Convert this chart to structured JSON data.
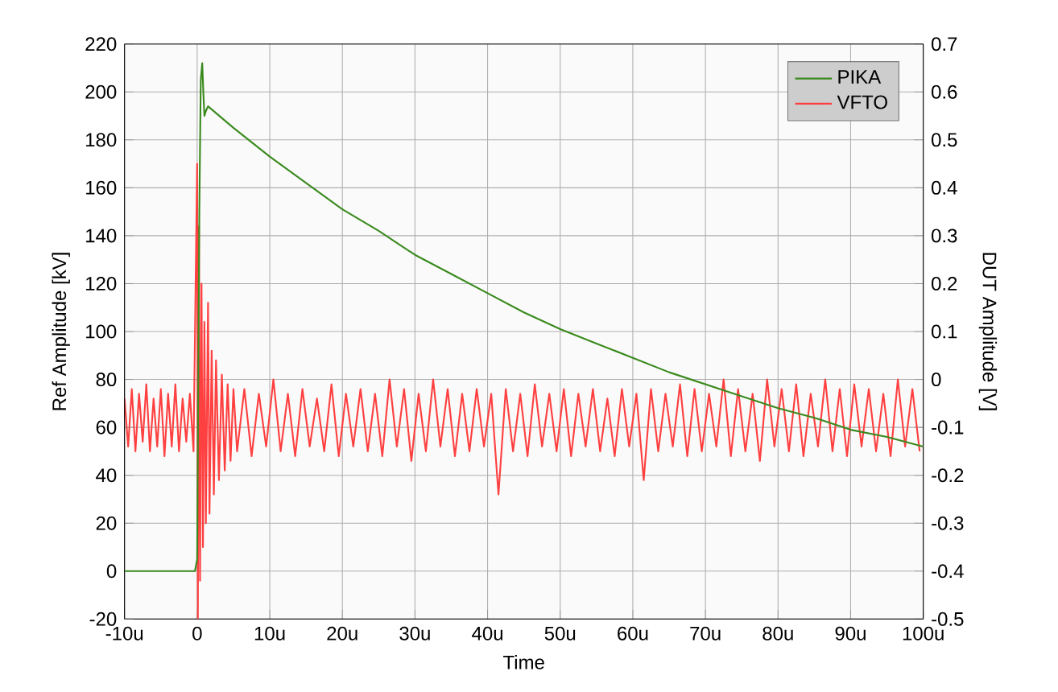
{
  "chart_data": {
    "type": "line",
    "xlabel": "Time",
    "ylabel": "Ref Amplitude [kV]",
    "y2label": "DUT Amplitude [V]",
    "xlim": [
      -10,
      100
    ],
    "xticks": [
      {
        "value": -10,
        "label": "-10u"
      },
      {
        "value": 0,
        "label": "0"
      },
      {
        "value": 10,
        "label": "10u"
      },
      {
        "value": 20,
        "label": "20u"
      },
      {
        "value": 30,
        "label": "30u"
      },
      {
        "value": 40,
        "label": "40u"
      },
      {
        "value": 50,
        "label": "50u"
      },
      {
        "value": 60,
        "label": "60u"
      },
      {
        "value": 70,
        "label": "70u"
      },
      {
        "value": 80,
        "label": "80u"
      },
      {
        "value": 90,
        "label": "90u"
      },
      {
        "value": 100,
        "label": "100u"
      }
    ],
    "ylim": [
      -20,
      220
    ],
    "yticks": [
      -20,
      0,
      20,
      40,
      60,
      80,
      100,
      120,
      140,
      160,
      180,
      200,
      220
    ],
    "y2lim": [
      -0.5,
      0.7
    ],
    "y2ticks": [
      -0.5,
      -0.4,
      -0.3,
      -0.2,
      -0.1,
      0,
      0.1,
      0.2,
      0.3,
      0.4,
      0.5,
      0.6,
      0.7
    ],
    "grid": true,
    "legend": "top right",
    "series": [
      {
        "name": "PIKA",
        "color": "#3a8a1e",
        "axis": "y",
        "x": [
          -10,
          -0.3,
          0,
          0.3,
          0.5,
          0.7,
          0.85,
          1.0,
          1.2,
          1.5,
          5,
          10,
          15,
          20,
          25,
          30,
          35,
          40,
          45,
          50,
          55,
          60,
          65,
          70,
          75,
          80,
          85,
          90,
          95,
          100
        ],
        "values": [
          0,
          0,
          5,
          150,
          205,
          212,
          200,
          190,
          192,
          194,
          185,
          173,
          162,
          151,
          142,
          132,
          124,
          116,
          108,
          101,
          95,
          89,
          83,
          78,
          73,
          68,
          64,
          59,
          56,
          52
        ]
      },
      {
        "name": "VFTO",
        "color": "#ff4040",
        "axis": "y2",
        "x": [
          -10,
          -9.5,
          -9,
          -8.5,
          -8,
          -7.5,
          -7,
          -6.5,
          -6,
          -5.5,
          -5,
          -4.5,
          -4,
          -3.5,
          -3,
          -2.5,
          -2,
          -1.5,
          -1,
          -0.5,
          0,
          0.1,
          0.25,
          0.4,
          0.6,
          0.8,
          1.0,
          1.2,
          1.5,
          1.7,
          2.0,
          2.3,
          2.6,
          3.0,
          3.4,
          3.8,
          4.2,
          4.6,
          5.0,
          5.5,
          6.5,
          7.5,
          8.5,
          9.5,
          10.5,
          11.5,
          12.5,
          13.5,
          14.5,
          15.5,
          16.5,
          17.5,
          18.5,
          19.5,
          20.5,
          21.5,
          22.5,
          23.5,
          24.5,
          25.5,
          26.5,
          27.5,
          28.5,
          29.5,
          30.5,
          31.5,
          32.5,
          33.5,
          34.5,
          35.5,
          36.5,
          37.5,
          38.5,
          39.5,
          40.5,
          41.5,
          42.5,
          43.5,
          44.5,
          45.5,
          46.5,
          47.5,
          48.5,
          49.5,
          50.5,
          51.5,
          52.5,
          53.5,
          54.5,
          55.5,
          56.5,
          57.5,
          58.5,
          59.5,
          60.5,
          61.5,
          62.5,
          63.5,
          64.5,
          65.5,
          66.5,
          67.5,
          68.5,
          69.5,
          70.5,
          71.5,
          72.5,
          73.5,
          74.5,
          75.5,
          76.5,
          77.5,
          78.5,
          79.5,
          80.5,
          81.5,
          82.5,
          83.5,
          84.5,
          85.5,
          86.5,
          87.5,
          88.5,
          89.5,
          90.5,
          91.5,
          92.5,
          93.5,
          94.5,
          95.5,
          96.5,
          97.5,
          98.5,
          99.5
        ],
        "values": [
          -0.04,
          -0.14,
          -0.02,
          -0.15,
          -0.03,
          -0.13,
          -0.01,
          -0.15,
          -0.04,
          -0.14,
          -0.02,
          -0.16,
          -0.03,
          -0.14,
          -0.01,
          -0.15,
          -0.04,
          -0.13,
          -0.03,
          -0.15,
          0.45,
          -0.5,
          0.32,
          -0.42,
          0.2,
          -0.35,
          0.12,
          -0.3,
          0.16,
          -0.28,
          0.06,
          -0.24,
          0.04,
          -0.21,
          0.01,
          -0.19,
          -0.01,
          -0.17,
          -0.02,
          -0.15,
          -0.02,
          -0.16,
          -0.03,
          -0.14,
          0.0,
          -0.15,
          -0.03,
          -0.16,
          -0.02,
          -0.14,
          -0.04,
          -0.15,
          -0.01,
          -0.16,
          -0.03,
          -0.14,
          -0.02,
          -0.15,
          -0.03,
          -0.16,
          0.0,
          -0.14,
          -0.02,
          -0.17,
          -0.03,
          -0.15,
          0.0,
          -0.14,
          -0.02,
          -0.16,
          -0.03,
          -0.15,
          -0.02,
          -0.14,
          -0.03,
          -0.24,
          -0.02,
          -0.15,
          -0.03,
          -0.16,
          -0.01,
          -0.14,
          -0.03,
          -0.15,
          -0.02,
          -0.16,
          -0.03,
          -0.14,
          -0.02,
          -0.15,
          -0.04,
          -0.16,
          -0.02,
          -0.14,
          -0.03,
          -0.21,
          -0.02,
          -0.15,
          -0.03,
          -0.14,
          -0.01,
          -0.16,
          -0.02,
          -0.15,
          -0.03,
          -0.14,
          0.0,
          -0.16,
          -0.02,
          -0.15,
          -0.03,
          -0.17,
          0.0,
          -0.14,
          -0.02,
          -0.15,
          -0.01,
          -0.16,
          -0.03,
          -0.14,
          0.0,
          -0.15,
          -0.02,
          -0.16,
          -0.01,
          -0.14,
          -0.02,
          -0.15,
          -0.03,
          -0.16,
          0.0,
          -0.14,
          -0.02,
          -0.15
        ]
      }
    ]
  }
}
